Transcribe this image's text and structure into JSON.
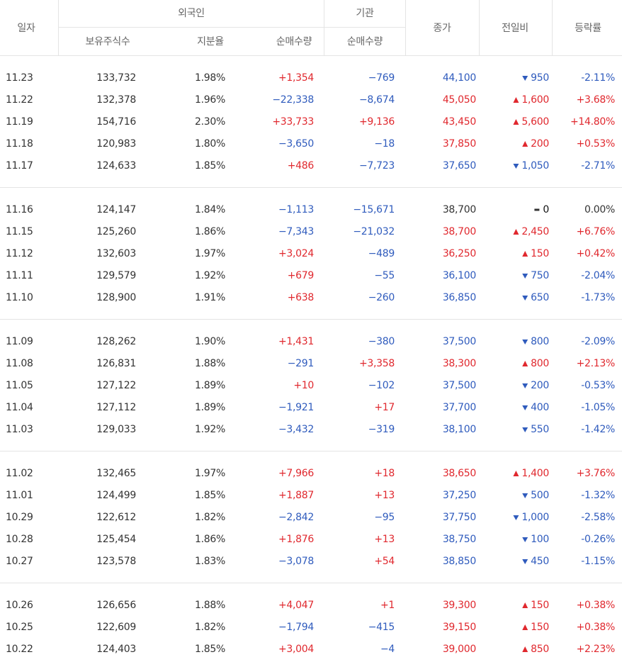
{
  "header": {
    "date": "일자",
    "foreign": "외국인",
    "foreign_columns": [
      "보유주식수",
      "지분율",
      "순매수량"
    ],
    "institution": "기관",
    "institution_columns": [
      "순매수량"
    ],
    "close": "종가",
    "change": "전일비",
    "rate": "등락률"
  },
  "groups": [
    [
      [
        "11.23",
        "133,732",
        "1.98%",
        "+1,354",
        "−769",
        "44,100",
        "950",
        "-2.11%"
      ],
      [
        "11.22",
        "132,378",
        "1.96%",
        "−22,338",
        "−8,674",
        "45,050",
        "1,600",
        "+3.68%"
      ],
      [
        "11.19",
        "154,716",
        "2.30%",
        "+33,733",
        "+9,136",
        "43,450",
        "5,600",
        "+14.80%"
      ],
      [
        "11.18",
        "120,983",
        "1.80%",
        "−3,650",
        "−18",
        "37,850",
        "200",
        "+0.53%"
      ],
      [
        "11.17",
        "124,633",
        "1.85%",
        "+486",
        "−7,723",
        "37,650",
        "1,050",
        "-2.71%"
      ]
    ],
    [
      [
        "11.16",
        "124,147",
        "1.84%",
        "−1,113",
        "−15,671",
        "38,700",
        "0",
        "0.00%"
      ],
      [
        "11.15",
        "125,260",
        "1.86%",
        "−7,343",
        "−21,032",
        "38,700",
        "2,450",
        "+6.76%"
      ],
      [
        "11.12",
        "132,603",
        "1.97%",
        "+3,024",
        "−489",
        "36,250",
        "150",
        "+0.42%"
      ],
      [
        "11.11",
        "129,579",
        "1.92%",
        "+679",
        "−55",
        "36,100",
        "750",
        "-2.04%"
      ],
      [
        "11.10",
        "128,900",
        "1.91%",
        "+638",
        "−260",
        "36,850",
        "650",
        "-1.73%"
      ]
    ],
    [
      [
        "11.09",
        "128,262",
        "1.90%",
        "+1,431",
        "−380",
        "37,500",
        "800",
        "-2.09%"
      ],
      [
        "11.08",
        "126,831",
        "1.88%",
        "−291",
        "+3,358",
        "38,300",
        "800",
        "+2.13%"
      ],
      [
        "11.05",
        "127,122",
        "1.89%",
        "+10",
        "−102",
        "37,500",
        "200",
        "-0.53%"
      ],
      [
        "11.04",
        "127,112",
        "1.89%",
        "−1,921",
        "+17",
        "37,700",
        "400",
        "-1.05%"
      ],
      [
        "11.03",
        "129,033",
        "1.92%",
        "−3,432",
        "−319",
        "38,100",
        "550",
        "-1.42%"
      ]
    ],
    [
      [
        "11.02",
        "132,465",
        "1.97%",
        "+7,966",
        "+18",
        "38,650",
        "1,400",
        "+3.76%"
      ],
      [
        "11.01",
        "124,499",
        "1.85%",
        "+1,887",
        "+13",
        "37,250",
        "500",
        "-1.32%"
      ],
      [
        "10.29",
        "122,612",
        "1.82%",
        "−2,842",
        "−95",
        "37,750",
        "1,000",
        "-2.58%"
      ],
      [
        "10.28",
        "125,454",
        "1.86%",
        "+1,876",
        "+13",
        "38,750",
        "100",
        "-0.26%"
      ],
      [
        "10.27",
        "123,578",
        "1.83%",
        "−3,078",
        "+54",
        "38,850",
        "450",
        "-1.15%"
      ]
    ],
    [
      [
        "10.26",
        "126,656",
        "1.88%",
        "+4,047",
        "+1",
        "39,300",
        "150",
        "+0.38%"
      ],
      [
        "10.25",
        "122,609",
        "1.82%",
        "−1,794",
        "−415",
        "39,150",
        "150",
        "+0.38%"
      ],
      [
        "10.22",
        "124,403",
        "1.85%",
        "+3,004",
        "−4",
        "39,000",
        "850",
        "+2.23%"
      ]
    ]
  ]
}
